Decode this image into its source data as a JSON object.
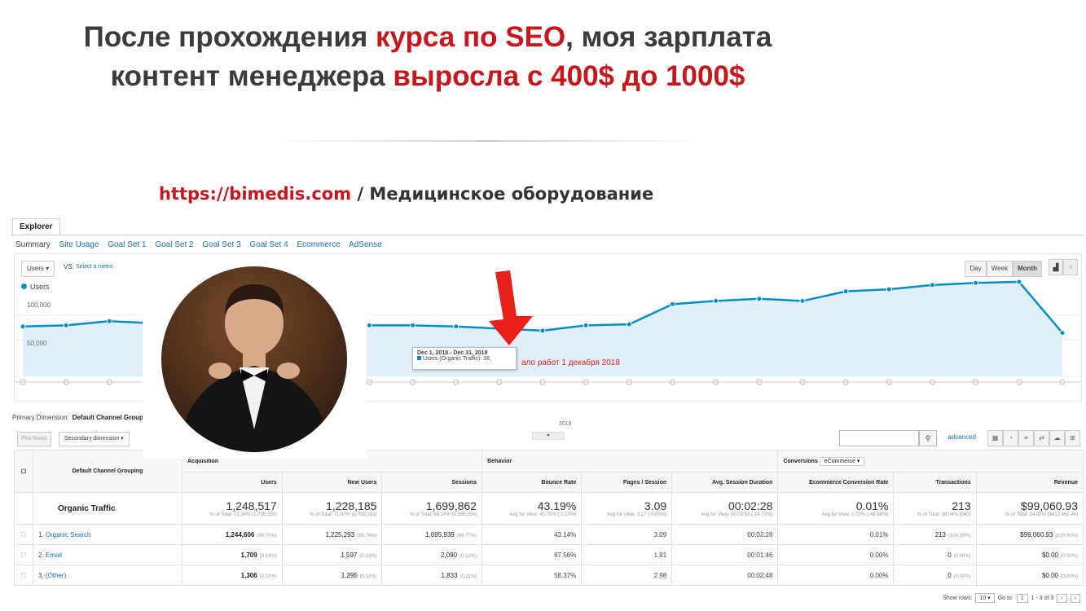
{
  "headline": {
    "part1": "После прохождения ",
    "part2": "курса по SEO",
    "part3": ", моя зарплата",
    "part4": "контент менеджера ",
    "part5": "выросла с 400$ до 1000$"
  },
  "subtitle": {
    "url": "https://bimedis.com",
    "rest": " / Медицинское оборудование"
  },
  "explorer": {
    "tab": "Explorer",
    "subtabs": [
      "Summary",
      "Site Usage",
      "Goal Set 1",
      "Goal Set 2",
      "Goal Set 3",
      "Goal Set 4",
      "Ecommerce",
      "AdSense"
    ],
    "metric": "Users",
    "vs": "VS.",
    "select_metric": "Select a metric",
    "periods": [
      "Day",
      "Week",
      "Month"
    ],
    "legend": "Users",
    "ytick_top": "100,000",
    "ytick_mid": "50,000",
    "xlabel": "2019",
    "tooltip_title": "Dec 1, 2018 - Dec 31, 2018",
    "tooltip_value": "Users (Organic Traffic): 38,",
    "annotation": "ало работ 1 декабря 2018"
  },
  "chart_data": {
    "type": "area",
    "series": [
      {
        "name": "Users",
        "values": [
          47000,
          48000,
          52000,
          50000,
          49000,
          48000,
          47500,
          47500,
          48000,
          48000,
          47000,
          45000,
          43000,
          48000,
          49000,
          68000,
          71000,
          73000,
          71000,
          80000,
          82000,
          86000,
          88000,
          89000,
          41000
        ]
      }
    ],
    "ylim": [
      0,
      100000
    ],
    "x_highlight_index": 11
  },
  "table": {
    "primary_dimension_label": "Primary Dimension:",
    "primary_dimension_value": "Default Channel Grouping",
    "plot_rows": "Plot Rows",
    "secondary_dimension": "Secondary dimension",
    "advanced": "advanced",
    "dim_header": "Default Channel Grouping",
    "groups": {
      "acq": "Acquisition",
      "beh": "Behavior",
      "conv": "Conversions",
      "conv_sel": "eCommerce"
    },
    "cols": [
      "Users",
      "New Users",
      "Sessions",
      "Bounce Rate",
      "Pages / Session",
      "Avg. Session Duration",
      "Ecommerce Conversion Rate",
      "Transactions",
      "Revenue"
    ],
    "total": {
      "label": "Organic Traffic",
      "values": [
        "1,248,517",
        "1,228,185",
        "1,699,862",
        "43.19%",
        "3.09",
        "00:02:28",
        "0.01%",
        "213",
        "$99,060.93"
      ],
      "subs": [
        "% of Total: 72.24% (1,728,220)",
        "% of Total: 71.07% (1,728,181)",
        "% of Total: 66.24% (2,566,354)",
        "Avg for View: 43.70% (-1.17%)",
        "Avg for View: 3.27 (-5.69%)",
        "Avg for View: 00:02:53 (-14.73%)",
        "Avg for View: 0.02% (-42.58%)",
        "% of Total: 38.04% (560)",
        "% of Total: 24.02% ($412,462.44)"
      ]
    },
    "rows": [
      {
        "idx": "1.",
        "name": "Organic Search",
        "users": "1,244,606",
        "users_pct": "(99.70%)",
        "new": "1,225,293",
        "new_pct": "(99.76%)",
        "sessions": "1,695,939",
        "sessions_pct": "(99.77%)",
        "bounce": "43.14%",
        "pages": "3.09",
        "dur": "00:02:28",
        "conv": "0.01%",
        "trans": "213",
        "trans_pct": "(100.00%)",
        "rev": "$99,060.93",
        "rev_pct": "(100.00%)"
      },
      {
        "idx": "2.",
        "name": "Email",
        "users": "1,709",
        "users_pct": "(0.14%)",
        "new": "1,597",
        "new_pct": "(0.13%)",
        "sessions": "2,090",
        "sessions_pct": "(0.12%)",
        "bounce": "67.56%",
        "pages": "1.91",
        "dur": "00:01:46",
        "conv": "0.00%",
        "trans": "0",
        "trans_pct": "(0.00%)",
        "rev": "$0.00",
        "rev_pct": "(0.00%)"
      },
      {
        "idx": "3.",
        "name": "(Other)",
        "users": "1,306",
        "users_pct": "(0.10%)",
        "new": "1,295",
        "new_pct": "(0.11%)",
        "sessions": "1,833",
        "sessions_pct": "(0.11%)",
        "bounce": "58.37%",
        "pages": "2.98",
        "dur": "00:02:48",
        "conv": "0.00%",
        "trans": "0",
        "trans_pct": "(0.00%)",
        "rev": "$0.00",
        "rev_pct": "(0.00%)"
      }
    ],
    "pager": {
      "show_rows": "Show rows:",
      "rows_val": "10",
      "goto": "Go to:",
      "goto_val": "1",
      "range": "1 - 3 of 3"
    }
  },
  "colors": {
    "accent_red": "#c8161d",
    "chart_line": "#058dc7",
    "chart_fill": "#e1f0f8",
    "arrow": "#e8201b"
  }
}
